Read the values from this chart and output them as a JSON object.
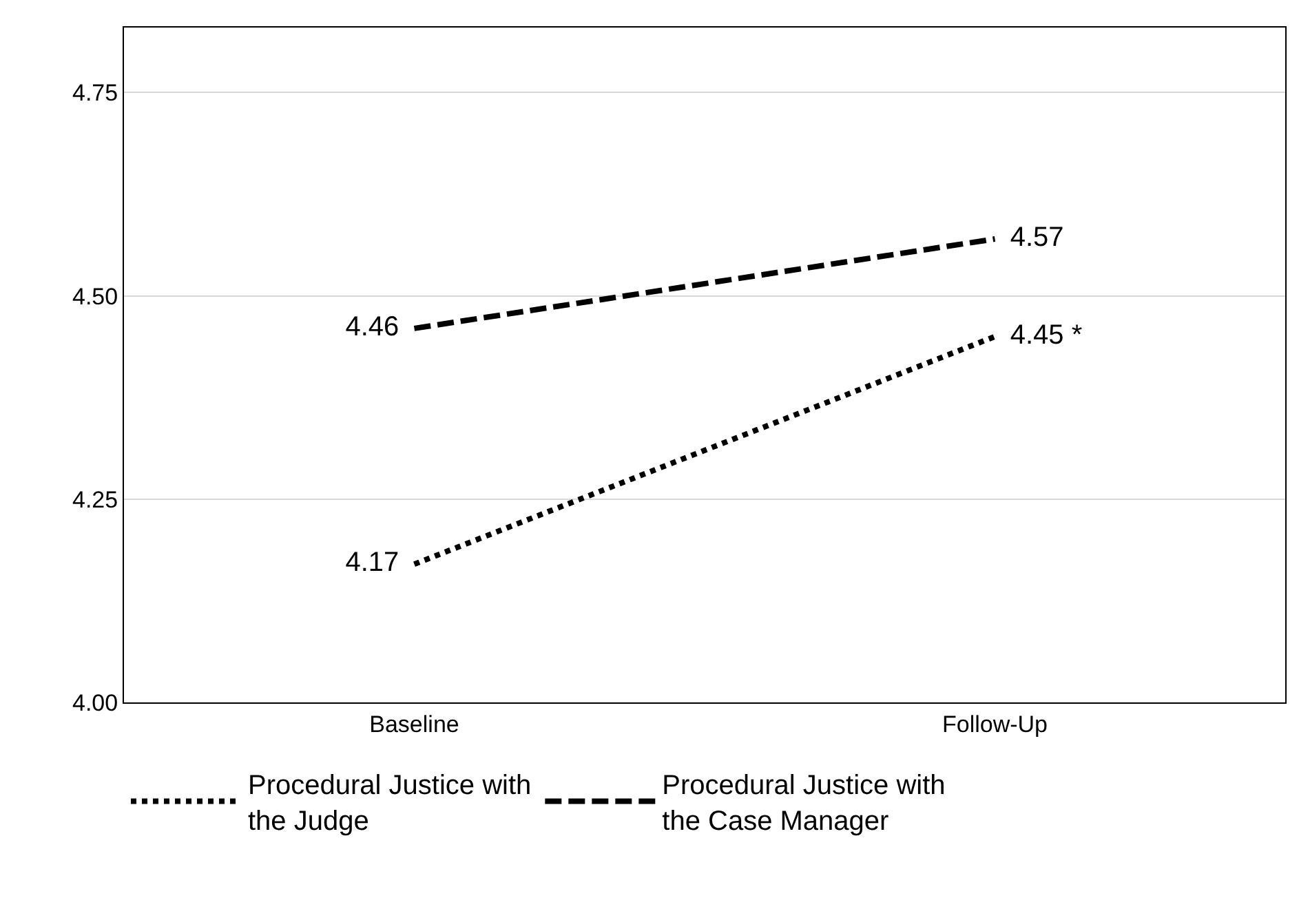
{
  "chart_data": {
    "type": "line",
    "categories": [
      "Baseline",
      "Follow-Up"
    ],
    "series": [
      {
        "name": "Procedural Justice with the Judge",
        "color": "#000000",
        "values": [
          4.17,
          4.45
        ],
        "value_labels": [
          "4.17",
          "4.45 *"
        ],
        "line_style": "dotted"
      },
      {
        "name": "Procedural Justice with the Case Manager",
        "color": "#000000",
        "values": [
          4.46,
          4.57
        ],
        "value_labels": [
          "4.46",
          "4.57"
        ],
        "line_style": "dashed"
      }
    ],
    "ylim": [
      4.0,
      4.83
    ],
    "yticks": [
      {
        "value": 4.0,
        "label": "4.00"
      },
      {
        "value": 4.25,
        "label": "4.25"
      },
      {
        "value": 4.5,
        "label": "4.50"
      },
      {
        "value": 4.75,
        "label": "4.75"
      }
    ],
    "grid": "y",
    "legend": "bottom",
    "marker": "none"
  }
}
